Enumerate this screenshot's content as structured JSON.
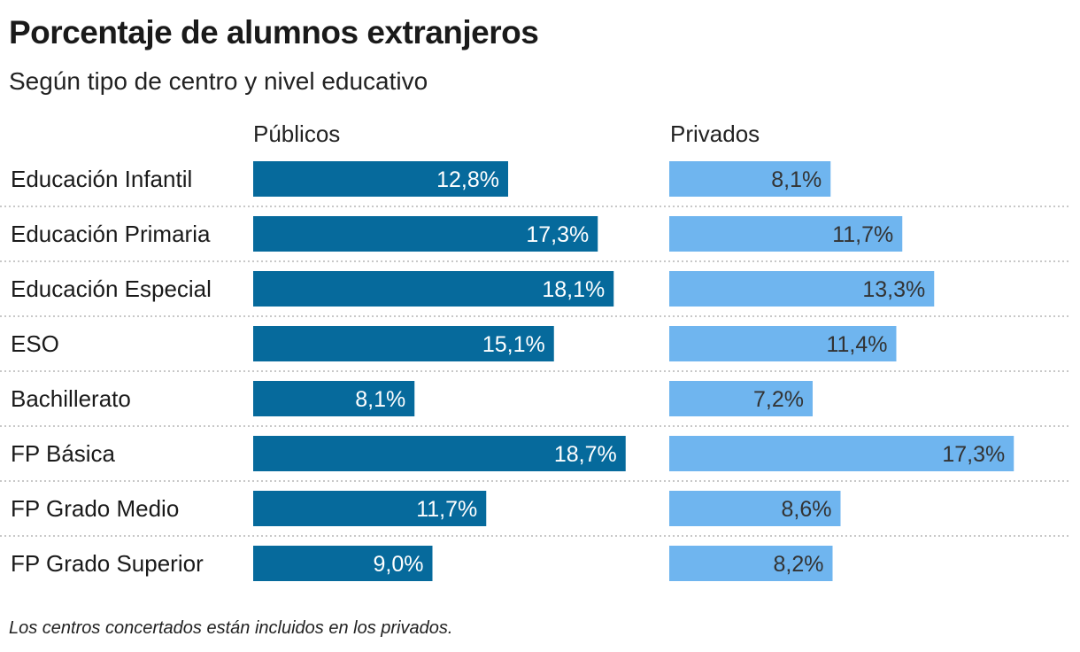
{
  "title": "Porcentaje de alumnos extranjeros",
  "subtitle": "Según tipo de centro y nivel educativo",
  "footnote": "Los centros concertados están incluidos en los privados.",
  "chart_data": {
    "type": "bar",
    "orientation": "horizontal",
    "title": "Porcentaje de alumnos extranjeros",
    "subtitle": "Según tipo de centro y nivel educativo",
    "categories": [
      "Educación Infantil",
      "Educación Primaria",
      "Educación Especial",
      "ESO",
      "Bachillerato",
      "FP Básica",
      "FP Grado Medio",
      "FP Grado Superior"
    ],
    "series": [
      {
        "name": "Públicos",
        "color": "#066a9c",
        "label_color": "#ffffff",
        "values": [
          12.8,
          17.3,
          18.1,
          15.1,
          8.1,
          18.7,
          11.7,
          9.0
        ],
        "labels": [
          "12,8%",
          "17,3%",
          "18,1%",
          "15,1%",
          "8,1%",
          "18,7%",
          "11,7%",
          "9,0%"
        ]
      },
      {
        "name": "Privados",
        "color": "#6fb5ef",
        "label_color": "#333333",
        "values": [
          8.1,
          11.7,
          13.3,
          11.4,
          7.2,
          17.3,
          8.6,
          8.2
        ],
        "labels": [
          "8,1%",
          "11,7%",
          "13,3%",
          "11,4%",
          "7,2%",
          "17,3%",
          "8,6%",
          "8,2%"
        ]
      }
    ],
    "grid": false,
    "separators": "dotted"
  }
}
